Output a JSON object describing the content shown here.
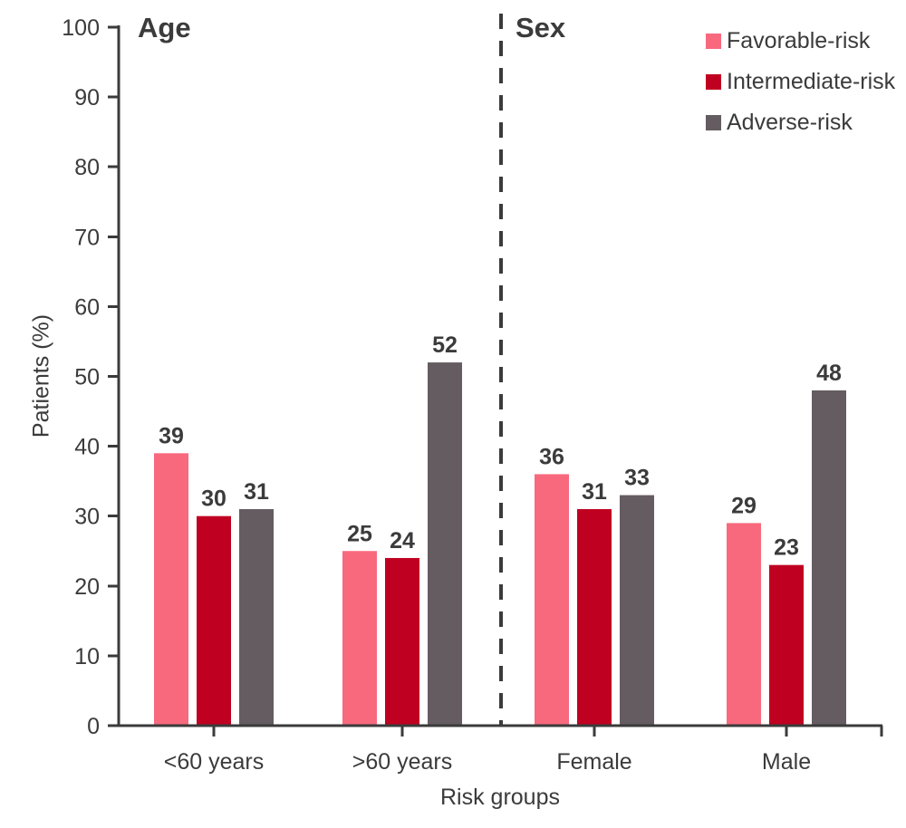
{
  "chart_data": {
    "type": "bar",
    "title": "",
    "xlabel": "Risk groups",
    "ylabel": "Patients (%)",
    "ylim": [
      0,
      100
    ],
    "ytick_step": 10,
    "grid": false,
    "legend_position": "top-right",
    "sections": [
      {
        "label": "Age",
        "categories": [
          "<60 years",
          ">60 years"
        ]
      },
      {
        "label": "Sex",
        "categories": [
          "Female",
          "Male"
        ]
      }
    ],
    "categories": [
      "<60 years",
      ">60 years",
      "Female",
      "Male"
    ],
    "series": [
      {
        "name": "Favorable-risk",
        "color": "#F8697D",
        "values": [
          39,
          25,
          36,
          29
        ]
      },
      {
        "name": "Intermediate-risk",
        "color": "#C00021",
        "values": [
          30,
          24,
          31,
          23
        ]
      },
      {
        "name": "Adverse-risk",
        "color": "#645C61",
        "values": [
          31,
          52,
          33,
          48
        ]
      }
    ],
    "separator": {
      "style": "dashed",
      "after_category": ">60 years"
    }
  },
  "colors": {
    "favorable": "#F8697D",
    "intermediate": "#C00021",
    "adverse": "#645C61",
    "axis": "#3B3B3B",
    "text": "#3B3B3B",
    "background": "#FFFFFF"
  }
}
